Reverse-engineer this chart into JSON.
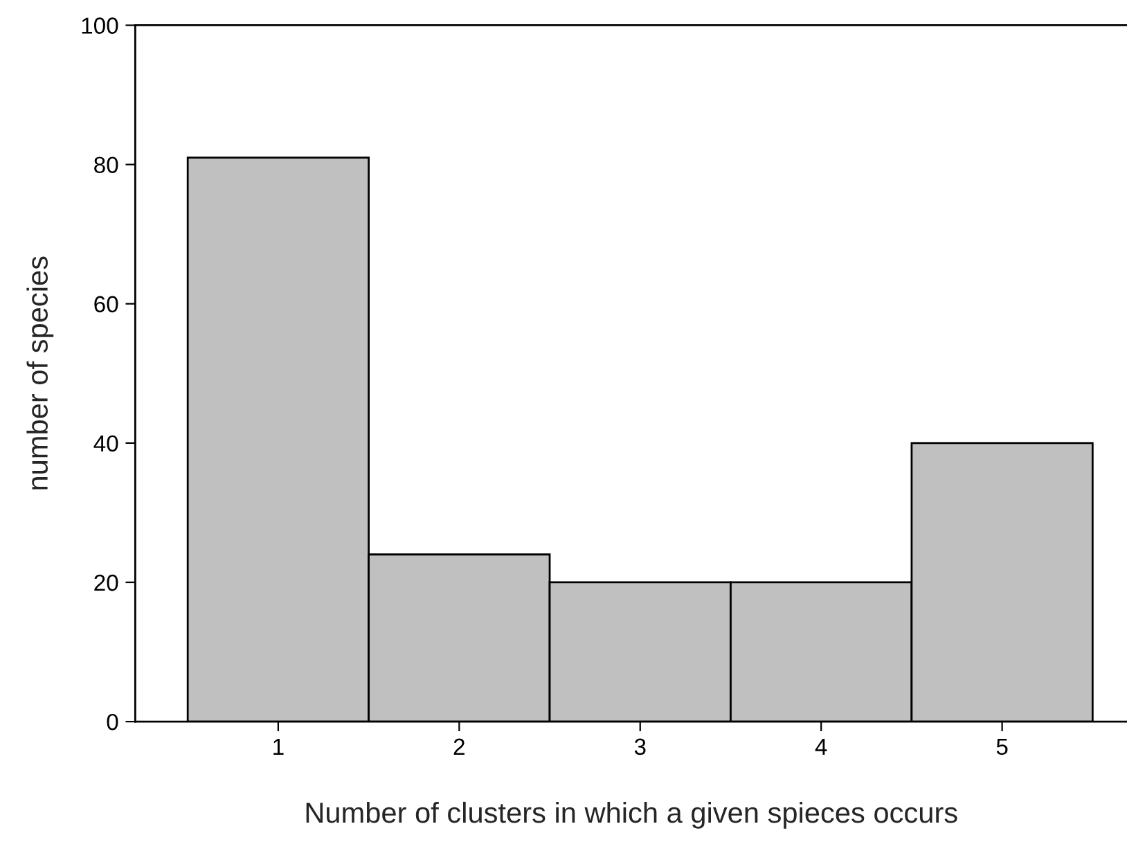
{
  "chart_data": {
    "type": "bar",
    "xlabel": "Number of clusters in which a given spieces occurs",
    "ylabel": "number of species",
    "categories": [
      "1",
      "2",
      "3",
      "4",
      "5"
    ],
    "values": [
      81,
      24,
      20,
      20,
      40
    ],
    "color": "#c0c0c0",
    "ylim": [
      0,
      100
    ],
    "yticks": [
      0,
      20,
      40,
      60,
      80,
      100
    ],
    "grid": false,
    "legend": false
  }
}
